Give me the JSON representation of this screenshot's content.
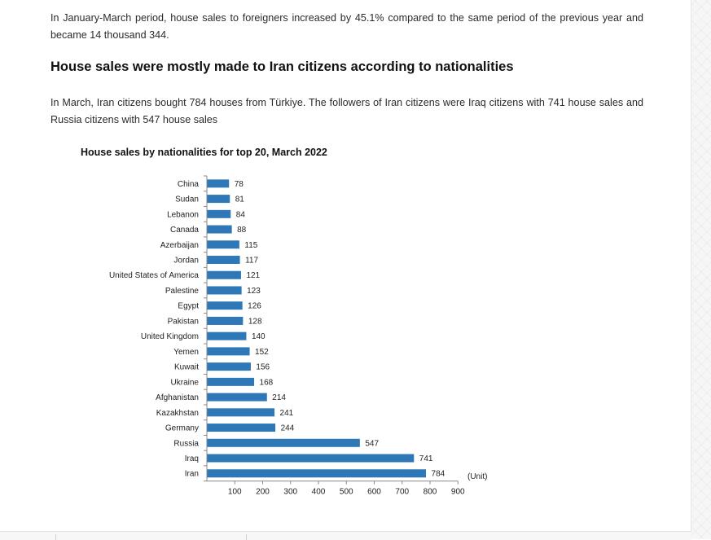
{
  "paragraph1": "In January-March period, house sales to foreigners increased by 45.1% compared to the same period of the previous year and became 14 thousand 344.",
  "heading": "House sales were mostly made to Iran citizens according to nationalities",
  "paragraph2": "In March, Iran citizens bought 784 houses from Türkiye. The followers of Iran citizens were Iraq citizens with 741 house sales and Russia citizens with 547 house sales",
  "colors": {
    "bar": "#2e78b7"
  },
  "chart_data": {
    "type": "bar",
    "orientation": "horizontal",
    "title": "House sales by nationalities for top 20, March 2022",
    "unit_label": "(Unit)",
    "categories": [
      "China",
      "Sudan",
      "Lebanon",
      "Canada",
      "Azerbaijan",
      "Jordan",
      "United States of America",
      "Palestine",
      "Egypt",
      "Pakistan",
      "United Kingdom",
      "Yemen",
      "Kuwait",
      "Ukraine",
      "Afghanistan",
      "Kazakhstan",
      "Germany",
      "Russia",
      "Iraq",
      "Iran"
    ],
    "values": [
      78,
      81,
      84,
      88,
      115,
      117,
      121,
      123,
      126,
      128,
      140,
      152,
      156,
      168,
      214,
      241,
      244,
      547,
      741,
      784
    ],
    "xlim": [
      0,
      900
    ],
    "xticks": [
      100,
      200,
      300,
      400,
      500,
      600,
      700,
      800,
      900
    ],
    "grid": false,
    "legend": "none"
  }
}
